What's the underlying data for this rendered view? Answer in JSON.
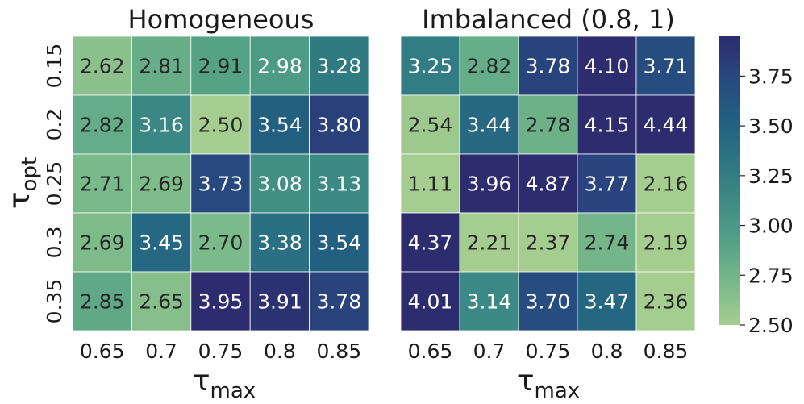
{
  "chart_data": [
    {
      "type": "heatmap",
      "title": "Homogeneous",
      "xlabel": "τ",
      "xlabel_sub": "max",
      "ylabel": "τ",
      "ylabel_sub": "opt",
      "x_categories": [
        "0.65",
        "0.7",
        "0.75",
        "0.8",
        "0.85"
      ],
      "y_categories": [
        "0.15",
        "0.2",
        "0.25",
        "0.3",
        "0.35"
      ],
      "values": [
        [
          2.62,
          2.81,
          2.91,
          2.98,
          3.28
        ],
        [
          2.82,
          3.16,
          2.5,
          3.54,
          3.8
        ],
        [
          2.71,
          2.69,
          3.73,
          3.08,
          3.13
        ],
        [
          2.69,
          3.45,
          2.7,
          3.38,
          3.54
        ],
        [
          2.85,
          2.65,
          3.95,
          3.91,
          3.78
        ]
      ]
    },
    {
      "type": "heatmap",
      "title": "Imbalanced (0.8, 1)",
      "xlabel": "τ",
      "xlabel_sub": "max",
      "x_categories": [
        "0.65",
        "0.7",
        "0.75",
        "0.8",
        "0.85"
      ],
      "values": [
        [
          3.25,
          2.82,
          3.78,
          4.1,
          3.71
        ],
        [
          2.54,
          3.44,
          2.78,
          4.15,
          4.44
        ],
        [
          1.11,
          3.96,
          4.87,
          3.77,
          2.16
        ],
        [
          4.37,
          2.21,
          2.37,
          2.74,
          2.19
        ],
        [
          4.01,
          3.14,
          3.7,
          3.47,
          2.36
        ]
      ]
    }
  ],
  "colorbar": {
    "vmin": 2.5,
    "vmax": 3.95,
    "ticks": [
      "2.50",
      "2.75",
      "3.00",
      "3.25",
      "3.50",
      "3.75"
    ],
    "colormap": "crest",
    "colors": [
      "#a5cd90",
      "#7ab98a",
      "#54a286",
      "#3d8b84",
      "#2c7582",
      "#225f81",
      "#284880",
      "#2c2c6e"
    ]
  },
  "styles": {
    "dark_text": "#262626",
    "light_text": "#ffffff",
    "grid_line": "#ffffff"
  }
}
